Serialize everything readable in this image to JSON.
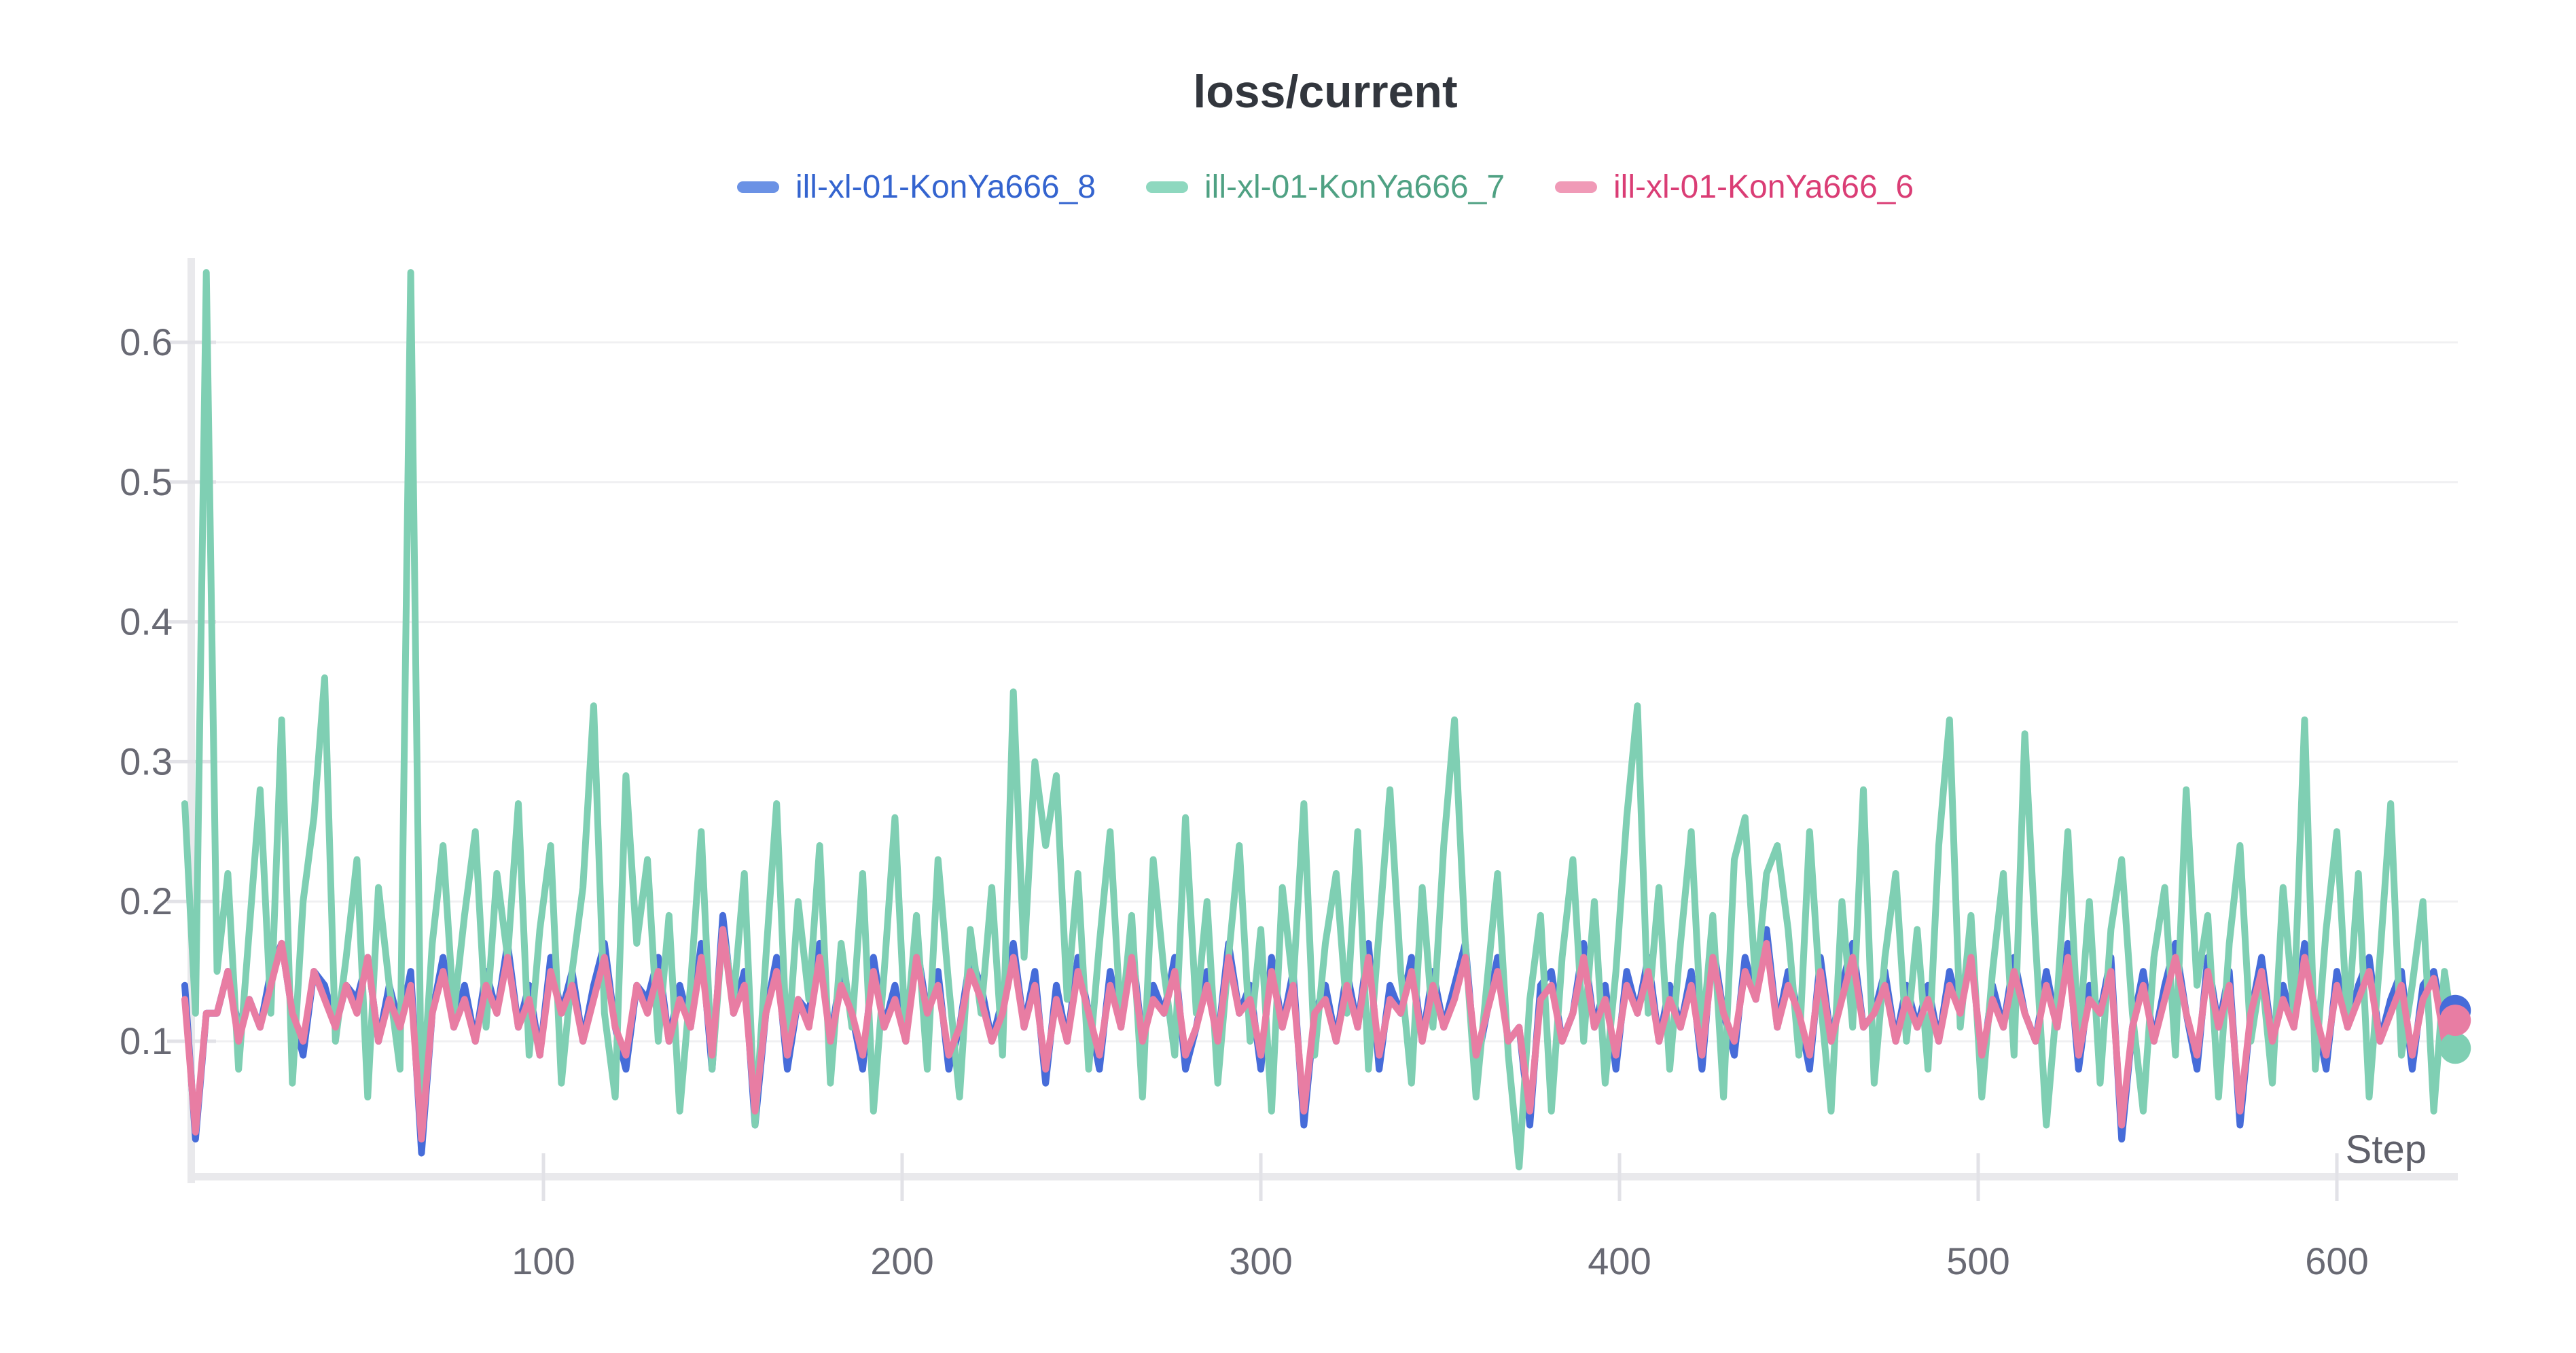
{
  "chart": {
    "title": "loss/current",
    "x_axis_label": "Step",
    "legend": [
      {
        "label": "ill-xl-01-KonYa666_8",
        "dash_color": "#6b92e5",
        "text_color": "#3464cf"
      },
      {
        "label": "ill-xl-01-KonYa666_7",
        "dash_color": "#8ed8bf",
        "text_color": "#4fa183"
      },
      {
        "label": "ill-xl-01-KonYa666_6",
        "dash_color": "#f09ab7",
        "text_color": "#da3d75"
      }
    ],
    "colors": {
      "title_text": "#32363d",
      "axis_label_text": "#686973",
      "step_label_text": "#5f606a",
      "axis_spine": "#e9e9ec",
      "tick_stub": "#e2e2e7",
      "gridline": "#f0f0f2"
    }
  },
  "chart_data": {
    "type": "line",
    "title": "loss/current",
    "xlabel": "Step",
    "ylabel": "",
    "x_ticks": [
      100,
      200,
      300,
      400,
      500,
      600
    ],
    "y_ticks": [
      0.1,
      0.2,
      0.3,
      0.4,
      0.5,
      0.6
    ],
    "xlim": [
      0,
      634
    ],
    "ylim": [
      0,
      0.66
    ],
    "grid": "horizontal-faint",
    "legend_position": "top-center",
    "step_start": 0,
    "step_interval": 3,
    "end_dot": true,
    "series": [
      {
        "name": "ill-xl-01-KonYa666_8",
        "color": "#466cd9",
        "values": [
          0.14,
          0.03,
          0.12,
          0.12,
          0.15,
          0.11,
          0.13,
          0.11,
          0.15,
          0.17,
          0.12,
          0.09,
          0.15,
          0.14,
          0.11,
          0.14,
          0.13,
          0.16,
          0.1,
          0.14,
          0.11,
          0.15,
          0.02,
          0.12,
          0.16,
          0.11,
          0.14,
          0.1,
          0.15,
          0.12,
          0.17,
          0.11,
          0.14,
          0.09,
          0.16,
          0.12,
          0.15,
          0.1,
          0.14,
          0.17,
          0.11,
          0.08,
          0.14,
          0.13,
          0.16,
          0.1,
          0.14,
          0.11,
          0.17,
          0.08,
          0.19,
          0.12,
          0.15,
          0.04,
          0.12,
          0.16,
          0.08,
          0.13,
          0.12,
          0.17,
          0.1,
          0.15,
          0.12,
          0.08,
          0.16,
          0.11,
          0.14,
          0.1,
          0.17,
          0.12,
          0.15,
          0.08,
          0.11,
          0.16,
          0.14,
          0.1,
          0.13,
          0.17,
          0.11,
          0.15,
          0.07,
          0.14,
          0.1,
          0.16,
          0.12,
          0.08,
          0.15,
          0.11,
          0.17,
          0.1,
          0.14,
          0.12,
          0.16,
          0.08,
          0.11,
          0.15,
          0.1,
          0.17,
          0.12,
          0.14,
          0.08,
          0.16,
          0.11,
          0.15,
          0.04,
          0.12,
          0.14,
          0.1,
          0.15,
          0.11,
          0.17,
          0.08,
          0.14,
          0.12,
          0.16,
          0.1,
          0.15,
          0.11,
          0.14,
          0.17,
          0.08,
          0.12,
          0.16,
          0.1,
          0.11,
          0.04,
          0.14,
          0.15,
          0.1,
          0.12,
          0.17,
          0.11,
          0.14,
          0.08,
          0.15,
          0.12,
          0.16,
          0.1,
          0.14,
          0.11,
          0.15,
          0.08,
          0.17,
          0.12,
          0.09,
          0.16,
          0.13,
          0.18,
          0.11,
          0.15,
          0.12,
          0.08,
          0.16,
          0.1,
          0.14,
          0.17,
          0.11,
          0.12,
          0.15,
          0.1,
          0.14,
          0.11,
          0.14,
          0.1,
          0.15,
          0.12,
          0.17,
          0.08,
          0.14,
          0.11,
          0.16,
          0.12,
          0.1,
          0.15,
          0.11,
          0.17,
          0.08,
          0.14,
          0.12,
          0.16,
          0.03,
          0.11,
          0.15,
          0.1,
          0.14,
          0.17,
          0.12,
          0.08,
          0.16,
          0.11,
          0.15,
          0.04,
          0.12,
          0.16,
          0.1,
          0.14,
          0.11,
          0.17,
          0.12,
          0.08,
          0.15,
          0.11,
          0.14,
          0.16,
          0.1,
          0.13,
          0.15,
          0.08,
          0.14,
          0.15,
          0.11,
          0.122
        ]
      },
      {
        "name": "ill-xl-01-KonYa666_7",
        "color": "#7fcfb3",
        "values": [
          0.27,
          0.12,
          0.65,
          0.15,
          0.22,
          0.08,
          0.18,
          0.28,
          0.12,
          0.33,
          0.07,
          0.2,
          0.26,
          0.36,
          0.1,
          0.16,
          0.23,
          0.06,
          0.21,
          0.14,
          0.08,
          0.65,
          0.05,
          0.17,
          0.24,
          0.12,
          0.19,
          0.25,
          0.11,
          0.22,
          0.16,
          0.27,
          0.09,
          0.18,
          0.24,
          0.07,
          0.15,
          0.21,
          0.34,
          0.12,
          0.06,
          0.29,
          0.17,
          0.23,
          0.1,
          0.19,
          0.05,
          0.14,
          0.25,
          0.08,
          0.18,
          0.13,
          0.22,
          0.04,
          0.16,
          0.27,
          0.09,
          0.2,
          0.13,
          0.24,
          0.07,
          0.17,
          0.11,
          0.22,
          0.05,
          0.15,
          0.26,
          0.1,
          0.19,
          0.08,
          0.23,
          0.14,
          0.06,
          0.18,
          0.12,
          0.21,
          0.09,
          0.35,
          0.16,
          0.3,
          0.24,
          0.29,
          0.13,
          0.22,
          0.08,
          0.17,
          0.25,
          0.11,
          0.19,
          0.06,
          0.23,
          0.15,
          0.09,
          0.26,
          0.12,
          0.2,
          0.07,
          0.16,
          0.24,
          0.1,
          0.18,
          0.05,
          0.21,
          0.14,
          0.27,
          0.09,
          0.17,
          0.22,
          0.12,
          0.25,
          0.08,
          0.18,
          0.28,
          0.15,
          0.07,
          0.21,
          0.11,
          0.24,
          0.33,
          0.17,
          0.06,
          0.14,
          0.22,
          0.09,
          0.01,
          0.13,
          0.19,
          0.05,
          0.16,
          0.23,
          0.1,
          0.2,
          0.07,
          0.15,
          0.26,
          0.34,
          0.12,
          0.21,
          0.08,
          0.17,
          0.25,
          0.1,
          0.19,
          0.06,
          0.23,
          0.26,
          0.14,
          0.22,
          0.24,
          0.18,
          0.09,
          0.25,
          0.13,
          0.05,
          0.2,
          0.11,
          0.28,
          0.07,
          0.16,
          0.22,
          0.1,
          0.18,
          0.08,
          0.24,
          0.33,
          0.11,
          0.19,
          0.06,
          0.15,
          0.22,
          0.09,
          0.32,
          0.17,
          0.04,
          0.13,
          0.25,
          0.1,
          0.2,
          0.07,
          0.18,
          0.23,
          0.12,
          0.05,
          0.16,
          0.21,
          0.09,
          0.28,
          0.14,
          0.19,
          0.06,
          0.17,
          0.24,
          0.1,
          0.15,
          0.07,
          0.21,
          0.12,
          0.33,
          0.08,
          0.18,
          0.25,
          0.11,
          0.22,
          0.06,
          0.16,
          0.27,
          0.09,
          0.14,
          0.2,
          0.05,
          0.15,
          0.095
        ]
      },
      {
        "name": "ill-xl-01-KonYa666_6",
        "color": "#e87da3",
        "values": [
          0.13,
          0.035,
          0.12,
          0.12,
          0.15,
          0.1,
          0.13,
          0.11,
          0.14,
          0.17,
          0.12,
          0.1,
          0.15,
          0.13,
          0.11,
          0.14,
          0.12,
          0.16,
          0.1,
          0.13,
          0.11,
          0.14,
          0.03,
          0.12,
          0.15,
          0.11,
          0.13,
          0.1,
          0.14,
          0.12,
          0.16,
          0.11,
          0.13,
          0.09,
          0.15,
          0.12,
          0.14,
          0.1,
          0.13,
          0.16,
          0.11,
          0.09,
          0.14,
          0.12,
          0.15,
          0.1,
          0.13,
          0.11,
          0.16,
          0.09,
          0.18,
          0.12,
          0.14,
          0.05,
          0.12,
          0.15,
          0.09,
          0.13,
          0.11,
          0.16,
          0.1,
          0.14,
          0.12,
          0.09,
          0.15,
          0.11,
          0.13,
          0.1,
          0.16,
          0.12,
          0.14,
          0.09,
          0.11,
          0.15,
          0.13,
          0.1,
          0.12,
          0.16,
          0.11,
          0.14,
          0.08,
          0.13,
          0.1,
          0.15,
          0.12,
          0.09,
          0.14,
          0.11,
          0.16,
          0.1,
          0.13,
          0.12,
          0.15,
          0.09,
          0.11,
          0.14,
          0.1,
          0.16,
          0.12,
          0.13,
          0.09,
          0.15,
          0.11,
          0.14,
          0.05,
          0.12,
          0.13,
          0.1,
          0.14,
          0.11,
          0.16,
          0.09,
          0.13,
          0.12,
          0.15,
          0.1,
          0.14,
          0.11,
          0.13,
          0.16,
          0.09,
          0.12,
          0.15,
          0.1,
          0.11,
          0.05,
          0.13,
          0.14,
          0.1,
          0.12,
          0.16,
          0.11,
          0.13,
          0.09,
          0.14,
          0.12,
          0.15,
          0.1,
          0.13,
          0.11,
          0.14,
          0.09,
          0.16,
          0.12,
          0.1,
          0.15,
          0.13,
          0.17,
          0.11,
          0.14,
          0.12,
          0.09,
          0.15,
          0.1,
          0.13,
          0.16,
          0.11,
          0.12,
          0.14,
          0.1,
          0.13,
          0.11,
          0.13,
          0.1,
          0.14,
          0.12,
          0.16,
          0.09,
          0.13,
          0.11,
          0.15,
          0.12,
          0.1,
          0.14,
          0.11,
          0.16,
          0.09,
          0.13,
          0.12,
          0.15,
          0.04,
          0.11,
          0.14,
          0.1,
          0.13,
          0.16,
          0.12,
          0.09,
          0.15,
          0.11,
          0.14,
          0.05,
          0.12,
          0.15,
          0.1,
          0.13,
          0.11,
          0.16,
          0.12,
          0.09,
          0.14,
          0.11,
          0.13,
          0.15,
          0.1,
          0.12,
          0.14,
          0.09,
          0.13,
          0.145,
          0.1,
          0.115
        ]
      }
    ]
  }
}
